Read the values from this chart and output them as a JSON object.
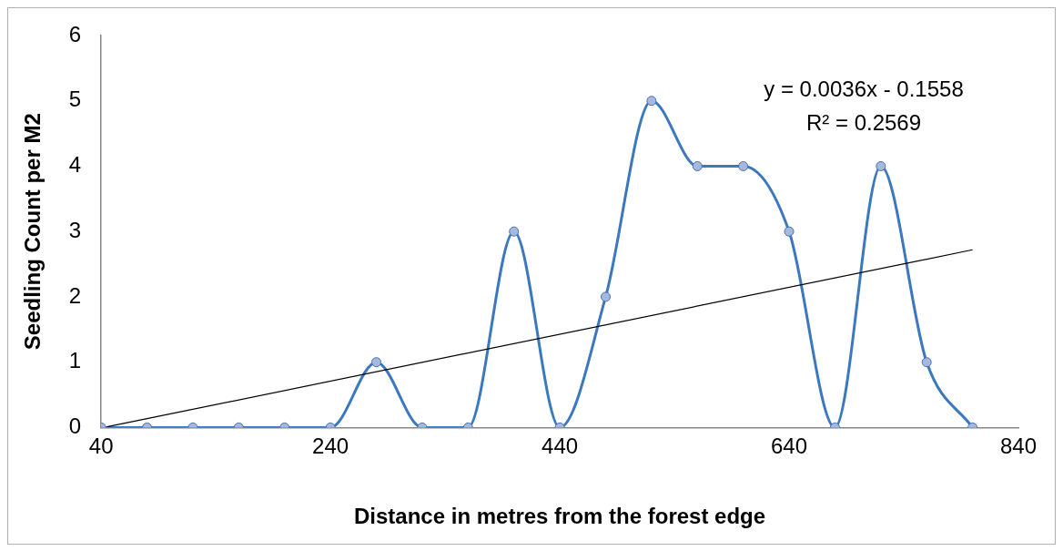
{
  "chart_data": {
    "type": "line",
    "xlabel": "Distance in metres from the forest edge",
    "ylabel": "Seedling Count per M2",
    "x": [
      40,
      80,
      120,
      160,
      200,
      240,
      280,
      320,
      360,
      400,
      440,
      480,
      520,
      560,
      600,
      640,
      680,
      720,
      760,
      800
    ],
    "series": [
      {
        "color": "#3a78c0",
        "values": [
          0,
          0,
          0,
          0,
          0,
          0,
          1,
          0,
          0,
          3,
          0,
          2,
          5,
          4,
          4,
          3,
          0,
          4,
          1,
          0
        ],
        "marker": "circle"
      },
      {
        "type": "line",
        "color": "#000000",
        "x": [
          45,
          800
        ],
        "values": [
          0.01,
          2.72
        ],
        "marker": "none"
      }
    ],
    "xlim": [
      40,
      840
    ],
    "xticks": [
      40,
      240,
      440,
      640,
      840
    ],
    "ylim": [
      0,
      6
    ],
    "yticks": [
      0,
      1,
      2,
      3,
      4,
      5,
      6
    ],
    "grid": false,
    "legend": false,
    "annotations": [
      "y = 0.0036x - 0.1558",
      "R² = 0.2569"
    ]
  }
}
